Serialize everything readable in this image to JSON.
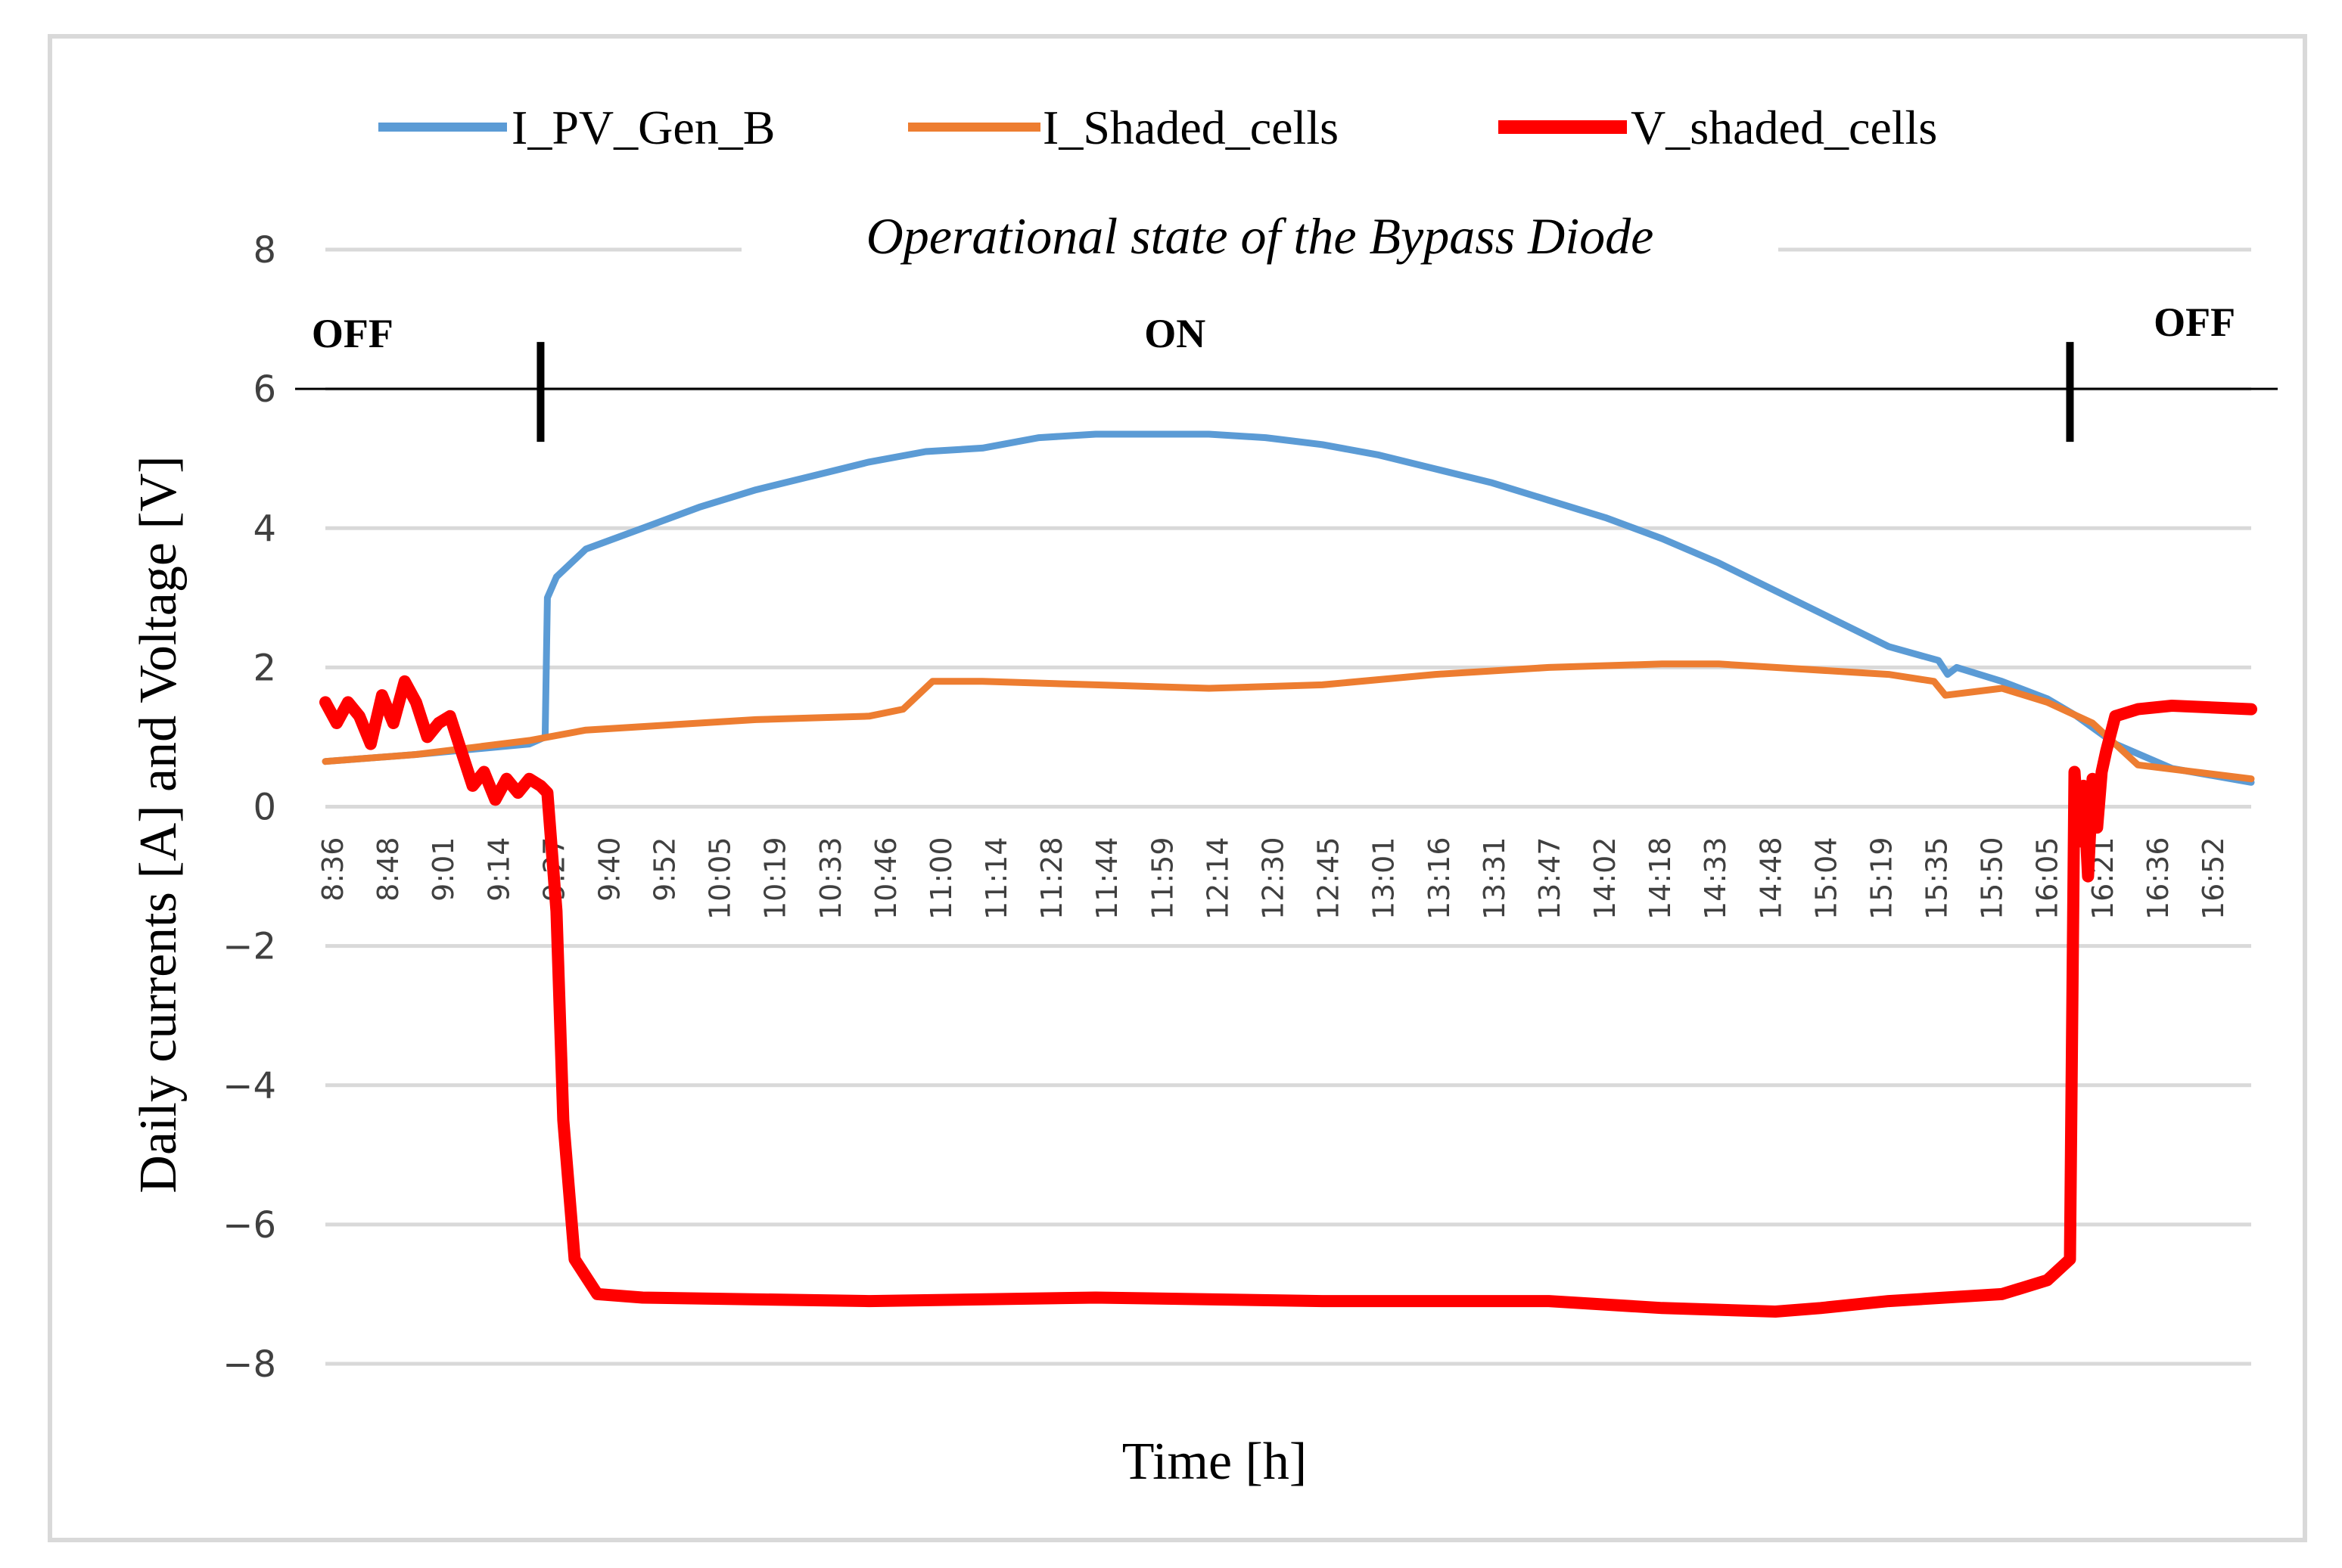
{
  "chart_data": {
    "type": "line",
    "title": "",
    "xlabel": "Time [h]",
    "ylabel": "Daily currents [A] and Voltage [V]",
    "ylim": [
      -8,
      8
    ],
    "yticks": [
      "8",
      "6",
      "4",
      "2",
      "0",
      "−2",
      "−4",
      "−6",
      "−8"
    ],
    "ytick_values": [
      8,
      6,
      4,
      2,
      0,
      -2,
      -4,
      -6,
      -8
    ],
    "grid": true,
    "legend_position": "top",
    "x_tick_labels": [
      "8:36",
      "8:48",
      "9:01",
      "9:14",
      "9:27",
      "9:40",
      "9:52",
      "10:05",
      "10:19",
      "10:33",
      "10:46",
      "11:00",
      "11:14",
      "11:28",
      "11:44",
      "11:59",
      "12:14",
      "12:30",
      "12:45",
      "13:01",
      "13:16",
      "13:31",
      "13:47",
      "14:02",
      "14:18",
      "14:33",
      "14:48",
      "15:04",
      "15:19",
      "15:35",
      "15:50",
      "16:05",
      "16:21",
      "16:36",
      "16:52"
    ],
    "x_range_hours": [
      8.6,
      17.1
    ],
    "series": [
      {
        "name": "I_PV_Gen_B",
        "color": "#5b9bd5",
        "x_hours": [
          8.6,
          9.0,
          9.5,
          9.57,
          9.58,
          9.62,
          9.75,
          10.0,
          10.25,
          10.5,
          10.75,
          11.0,
          11.25,
          11.5,
          11.75,
          12.0,
          12.25,
          12.5,
          12.75,
          13.0,
          13.25,
          13.5,
          13.75,
          14.0,
          14.25,
          14.5,
          14.75,
          15.0,
          15.25,
          15.5,
          15.72,
          15.76,
          15.8,
          16.0,
          16.2,
          16.33,
          16.5,
          16.75,
          17.1
        ],
        "values": [
          0.65,
          0.75,
          0.9,
          1.0,
          3.0,
          3.3,
          3.7,
          4.0,
          4.3,
          4.55,
          4.75,
          4.95,
          5.1,
          5.15,
          5.3,
          5.35,
          5.35,
          5.35,
          5.3,
          5.2,
          5.05,
          4.85,
          4.65,
          4.4,
          4.15,
          3.85,
          3.5,
          3.1,
          2.7,
          2.3,
          2.1,
          1.9,
          2.0,
          1.8,
          1.55,
          1.3,
          0.9,
          0.55,
          0.35
        ]
      },
      {
        "name": "I_Shaded_cells",
        "color": "#ed7d31",
        "x_hours": [
          8.6,
          9.0,
          9.5,
          9.75,
          10.0,
          10.5,
          11.0,
          11.15,
          11.28,
          11.5,
          12.0,
          12.5,
          13.0,
          13.5,
          14.0,
          14.5,
          14.75,
          15.0,
          15.5,
          15.7,
          15.75,
          16.0,
          16.2,
          16.4,
          16.6,
          17.1
        ],
        "values": [
          0.65,
          0.75,
          0.95,
          1.1,
          1.15,
          1.25,
          1.3,
          1.4,
          1.8,
          1.8,
          1.75,
          1.7,
          1.75,
          1.9,
          2.0,
          2.05,
          2.05,
          2.0,
          1.9,
          1.8,
          1.6,
          1.7,
          1.5,
          1.2,
          0.6,
          0.4
        ]
      },
      {
        "name": "V_shaded_cells",
        "color": "#ff0000",
        "x_hours": [
          8.6,
          8.65,
          8.7,
          8.75,
          8.8,
          8.85,
          8.9,
          8.95,
          9.0,
          9.05,
          9.1,
          9.15,
          9.2,
          9.25,
          9.3,
          9.35,
          9.4,
          9.45,
          9.5,
          9.55,
          9.58,
          9.62,
          9.65,
          9.7,
          9.8,
          10.0,
          11.0,
          12.0,
          13.0,
          14.0,
          14.5,
          15.0,
          15.2,
          15.5,
          16.0,
          16.2,
          16.3,
          16.32,
          16.34,
          16.36,
          16.38,
          16.4,
          16.42,
          16.44,
          16.46,
          16.5,
          16.6,
          16.75,
          17.1
        ],
        "values": [
          1.5,
          1.2,
          1.5,
          1.3,
          0.9,
          1.6,
          1.2,
          1.8,
          1.5,
          1.0,
          1.2,
          1.3,
          0.8,
          0.3,
          0.5,
          0.1,
          0.4,
          0.2,
          0.4,
          0.3,
          0.2,
          -1.5,
          -4.5,
          -6.5,
          -7.0,
          -7.05,
          -7.1,
          -7.05,
          -7.1,
          -7.1,
          -7.2,
          -7.25,
          -7.2,
          -7.1,
          -7.0,
          -6.8,
          -6.5,
          0.5,
          -0.5,
          0.3,
          -1.0,
          0.4,
          -0.3,
          0.5,
          0.8,
          1.3,
          1.4,
          1.45,
          1.4
        ]
      }
    ],
    "annotations": {
      "title": "Operational state of the Bypass Diode",
      "states": [
        {
          "label": "OFF",
          "x_hours": 8.72
        },
        {
          "label": "ON",
          "x_hours": 12.35
        },
        {
          "label": "OFF",
          "x_hours": 16.85
        }
      ],
      "markers_x_hours": [
        9.55,
        16.3
      ],
      "state_line_y": 6
    }
  }
}
